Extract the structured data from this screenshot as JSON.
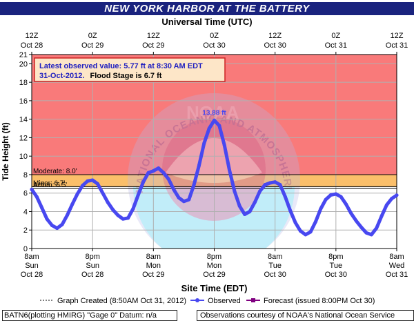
{
  "page": {
    "title": "NEW YORK HARBOR AT THE BATTERY",
    "top_axis_title": "Universal Time (UTC)",
    "bottom_axis_title": "Site Time (EDT)",
    "y_axis_title": "Tide Height (ft)",
    "footer_left": "BATN6(plotting HMIRG) \"Gage 0\" Datum: n/a",
    "footer_right": "Observations courtesy of NOAA's National Ocean Service",
    "watermark_text": "NATIONAL OCEANIC AND ATMOSPHERIC ADMINISTRATION · U.S. DEPARTMENT OF COMMERCE · NOAA",
    "latest_box": {
      "line1": "Latest observed value: 5.77 ft at 8:30 AM EDT",
      "line2_date": "31-Oct-2012.",
      "line2_rest": "Flood Stage is 6.7 ft"
    },
    "legend": {
      "created": "Graph Created (8:50AM Oct 31, 2012)",
      "observed": "Observed",
      "forecast": "Forecast (issued 8:00PM Oct 30)"
    },
    "peak_label": "13.88 ft"
  },
  "colors": {
    "title_bg": "#1a237e",
    "major_band": "#f97a7a",
    "moderate_band": "#fbbf6a",
    "observed_line": "#4848f0",
    "forecast_line": "#800080",
    "latest_box_bg": "#fde6c8",
    "latest_box_border": "#cc2222",
    "latest_text": "#2020c0"
  },
  "chart_data": {
    "type": "line",
    "title": "NEW YORK HARBOR AT THE BATTERY",
    "xlabel": "Site Time (EDT)",
    "x2label": "Universal Time (UTC)",
    "ylabel": "Tide Height (ft)",
    "ylim": [
      0,
      21
    ],
    "yticks": [
      0,
      2,
      4,
      6,
      8,
      10,
      12,
      14,
      16,
      18,
      20,
      21
    ],
    "xlim_hours_from_oct28_8am": [
      0,
      72
    ],
    "x_ticks_local": [
      {
        "h": 0,
        "line1": "8am",
        "line2": "Sun",
        "line3": "Oct 28"
      },
      {
        "h": 12,
        "line1": "8pm",
        "line2": "Sun",
        "line3": "Oct 28"
      },
      {
        "h": 24,
        "line1": "8am",
        "line2": "Mon",
        "line3": "Oct 29"
      },
      {
        "h": 36,
        "line1": "8pm",
        "line2": "Mon",
        "line3": "Oct 29"
      },
      {
        "h": 48,
        "line1": "8am",
        "line2": "Tue",
        "line3": "Oct 30"
      },
      {
        "h": 60,
        "line1": "8pm",
        "line2": "Tue",
        "line3": "Oct 30"
      },
      {
        "h": 72,
        "line1": "8am",
        "line2": "Wed",
        "line3": "Oct 31"
      }
    ],
    "x_ticks_utc": [
      {
        "h": 0,
        "line1": "12Z",
        "line2": "Oct 28"
      },
      {
        "h": 12,
        "line1": "0Z",
        "line2": "Oct 29"
      },
      {
        "h": 24,
        "line1": "12Z",
        "line2": "Oct 29"
      },
      {
        "h": 36,
        "line1": "0Z",
        "line2": "Oct 30"
      },
      {
        "h": 48,
        "line1": "12Z",
        "line2": "Oct 30"
      },
      {
        "h": 60,
        "line1": "0Z",
        "line2": "Oct 31"
      },
      {
        "h": 72,
        "line1": "12Z",
        "line2": "Oct 31"
      }
    ],
    "stages": [
      {
        "name": "Moderate:",
        "value": 8.0,
        "label": "Moderate:  8.0'"
      },
      {
        "name": "Minor:",
        "value": 6.7,
        "label": "Minor:  6.7'"
      },
      {
        "name": "Action:",
        "value": 6.5,
        "label": "Action:  6.5'"
      }
    ],
    "series": [
      {
        "name": "Observed",
        "color": "#4848f0",
        "points": [
          [
            0,
            6.4
          ],
          [
            1,
            5.6
          ],
          [
            2,
            4.4
          ],
          [
            3,
            3.2
          ],
          [
            4,
            2.5
          ],
          [
            5,
            2.2
          ],
          [
            6,
            2.6
          ],
          [
            7,
            3.6
          ],
          [
            8,
            4.8
          ],
          [
            9,
            5.9
          ],
          [
            10,
            6.8
          ],
          [
            11,
            7.3
          ],
          [
            12,
            7.4
          ],
          [
            13,
            7.0
          ],
          [
            14,
            6.0
          ],
          [
            15,
            5.0
          ],
          [
            16,
            4.2
          ],
          [
            17,
            3.6
          ],
          [
            18,
            3.2
          ],
          [
            19,
            3.3
          ],
          [
            20,
            4.3
          ],
          [
            21,
            5.8
          ],
          [
            22,
            7.2
          ],
          [
            23,
            8.2
          ],
          [
            24,
            8.4
          ],
          [
            25,
            8.7
          ],
          [
            26,
            8.2
          ],
          [
            27,
            7.5
          ],
          [
            28,
            6.4
          ],
          [
            29,
            5.5
          ],
          [
            30,
            5.1
          ],
          [
            31,
            5.3
          ],
          [
            32,
            6.9
          ],
          [
            33,
            9.0
          ],
          [
            34,
            11.4
          ],
          [
            35,
            13.0
          ],
          [
            36,
            13.88
          ],
          [
            37,
            13.3
          ],
          [
            38,
            11.2
          ],
          [
            39,
            8.5
          ],
          [
            40,
            6.2
          ],
          [
            41,
            4.6
          ],
          [
            42,
            3.7
          ],
          [
            43,
            4.0
          ],
          [
            44,
            5.0
          ],
          [
            45,
            6.2
          ],
          [
            46,
            6.9
          ],
          [
            47,
            7.1
          ],
          [
            48,
            7.2
          ],
          [
            49,
            6.9
          ],
          [
            50,
            5.6
          ],
          [
            51,
            4.1
          ],
          [
            52,
            2.8
          ],
          [
            53,
            1.9
          ],
          [
            54,
            1.5
          ],
          [
            55,
            1.8
          ],
          [
            56,
            2.9
          ],
          [
            57,
            4.3
          ],
          [
            58,
            5.3
          ],
          [
            59,
            5.8
          ],
          [
            60,
            5.9
          ],
          [
            61,
            5.6
          ],
          [
            62,
            4.8
          ],
          [
            63,
            3.8
          ],
          [
            64,
            3.0
          ],
          [
            65,
            2.3
          ],
          [
            66,
            1.7
          ],
          [
            67,
            1.5
          ],
          [
            68,
            2.2
          ],
          [
            69,
            3.5
          ],
          [
            70,
            4.7
          ],
          [
            71,
            5.4
          ],
          [
            72,
            5.77
          ]
        ]
      }
    ]
  }
}
